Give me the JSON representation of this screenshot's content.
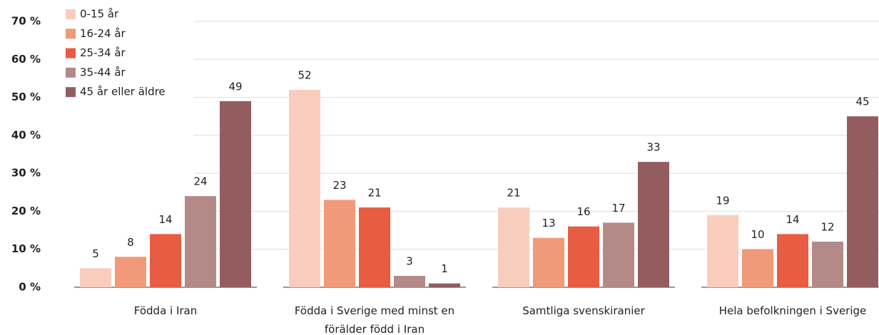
{
  "chart_data": {
    "type": "bar",
    "categories": [
      "Födda i Iran",
      "Födda i Sverige med minst en förälder född i Iran",
      "Samtliga svenskiranier",
      "Hela befolkningen i Sverige"
    ],
    "series": [
      {
        "name": "0-15 år",
        "color": "#f9cdbd",
        "values": [
          5,
          52,
          21,
          19
        ]
      },
      {
        "name": "16-24 år",
        "color": "#f09a7a",
        "values": [
          8,
          23,
          13,
          10
        ]
      },
      {
        "name": "25-34 år",
        "color": "#e85c41",
        "values": [
          14,
          21,
          16,
          14
        ]
      },
      {
        "name": "35-44 år",
        "color": "#b48a89",
        "values": [
          24,
          3,
          17,
          12
        ]
      },
      {
        "name": "45 år eller äldre",
        "color": "#935d60",
        "values": [
          49,
          1,
          33,
          45
        ]
      }
    ],
    "ylim": [
      0,
      70
    ],
    "yticks": [
      {
        "value": 0,
        "label": "0 %"
      },
      {
        "value": 10,
        "label": "10 %"
      },
      {
        "value": 20,
        "label": "20 %"
      },
      {
        "value": 30,
        "label": "30 %"
      },
      {
        "value": 40,
        "label": "40 %"
      },
      {
        "value": 50,
        "label": "50 %"
      },
      {
        "value": 60,
        "label": "60 %"
      },
      {
        "value": 70,
        "label": "70 %"
      }
    ],
    "grid": true,
    "legend": "top-left"
  }
}
